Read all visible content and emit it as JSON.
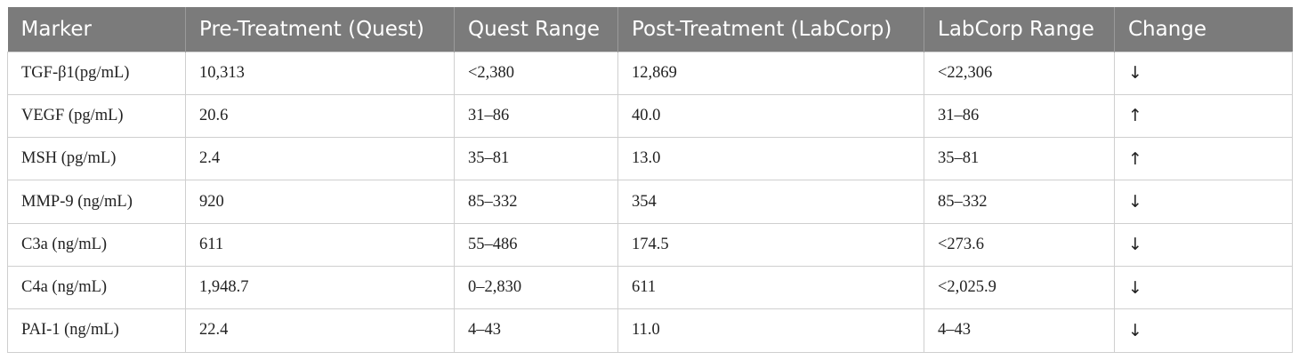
{
  "table": {
    "headers": [
      "Marker",
      "Pre-Treatment (Quest)",
      "Quest Range",
      "Post-Treatment (LabCorp)",
      "LabCorp Range",
      "Change"
    ],
    "rows": [
      [
        "TGF-β1(pg/mL)",
        "10,313",
        "<2,380",
        "12,869",
        "<22,306",
        "↓"
      ],
      [
        "VEGF (pg/mL)",
        "20.6",
        "31–86",
        "40.0",
        "31–86",
        "↑"
      ],
      [
        "MSH (pg/mL)",
        "2.4",
        "35–81",
        "13.0",
        "35–81",
        "↑"
      ],
      [
        "MMP-9 (ng/mL)",
        "920",
        "85–332",
        "354",
        "85–332",
        "↓"
      ],
      [
        "C3a (ng/mL)",
        "611",
        "55–486",
        "174.5",
        "<273.6",
        "↓"
      ],
      [
        "C4a (ng/mL)",
        "1,948.7",
        "0–2,830",
        "611",
        "<2,025.9",
        "↓"
      ],
      [
        "PAI-1 (ng/mL)",
        "22.4",
        "4–43",
        "11.0",
        "4–43",
        "↓"
      ]
    ]
  }
}
